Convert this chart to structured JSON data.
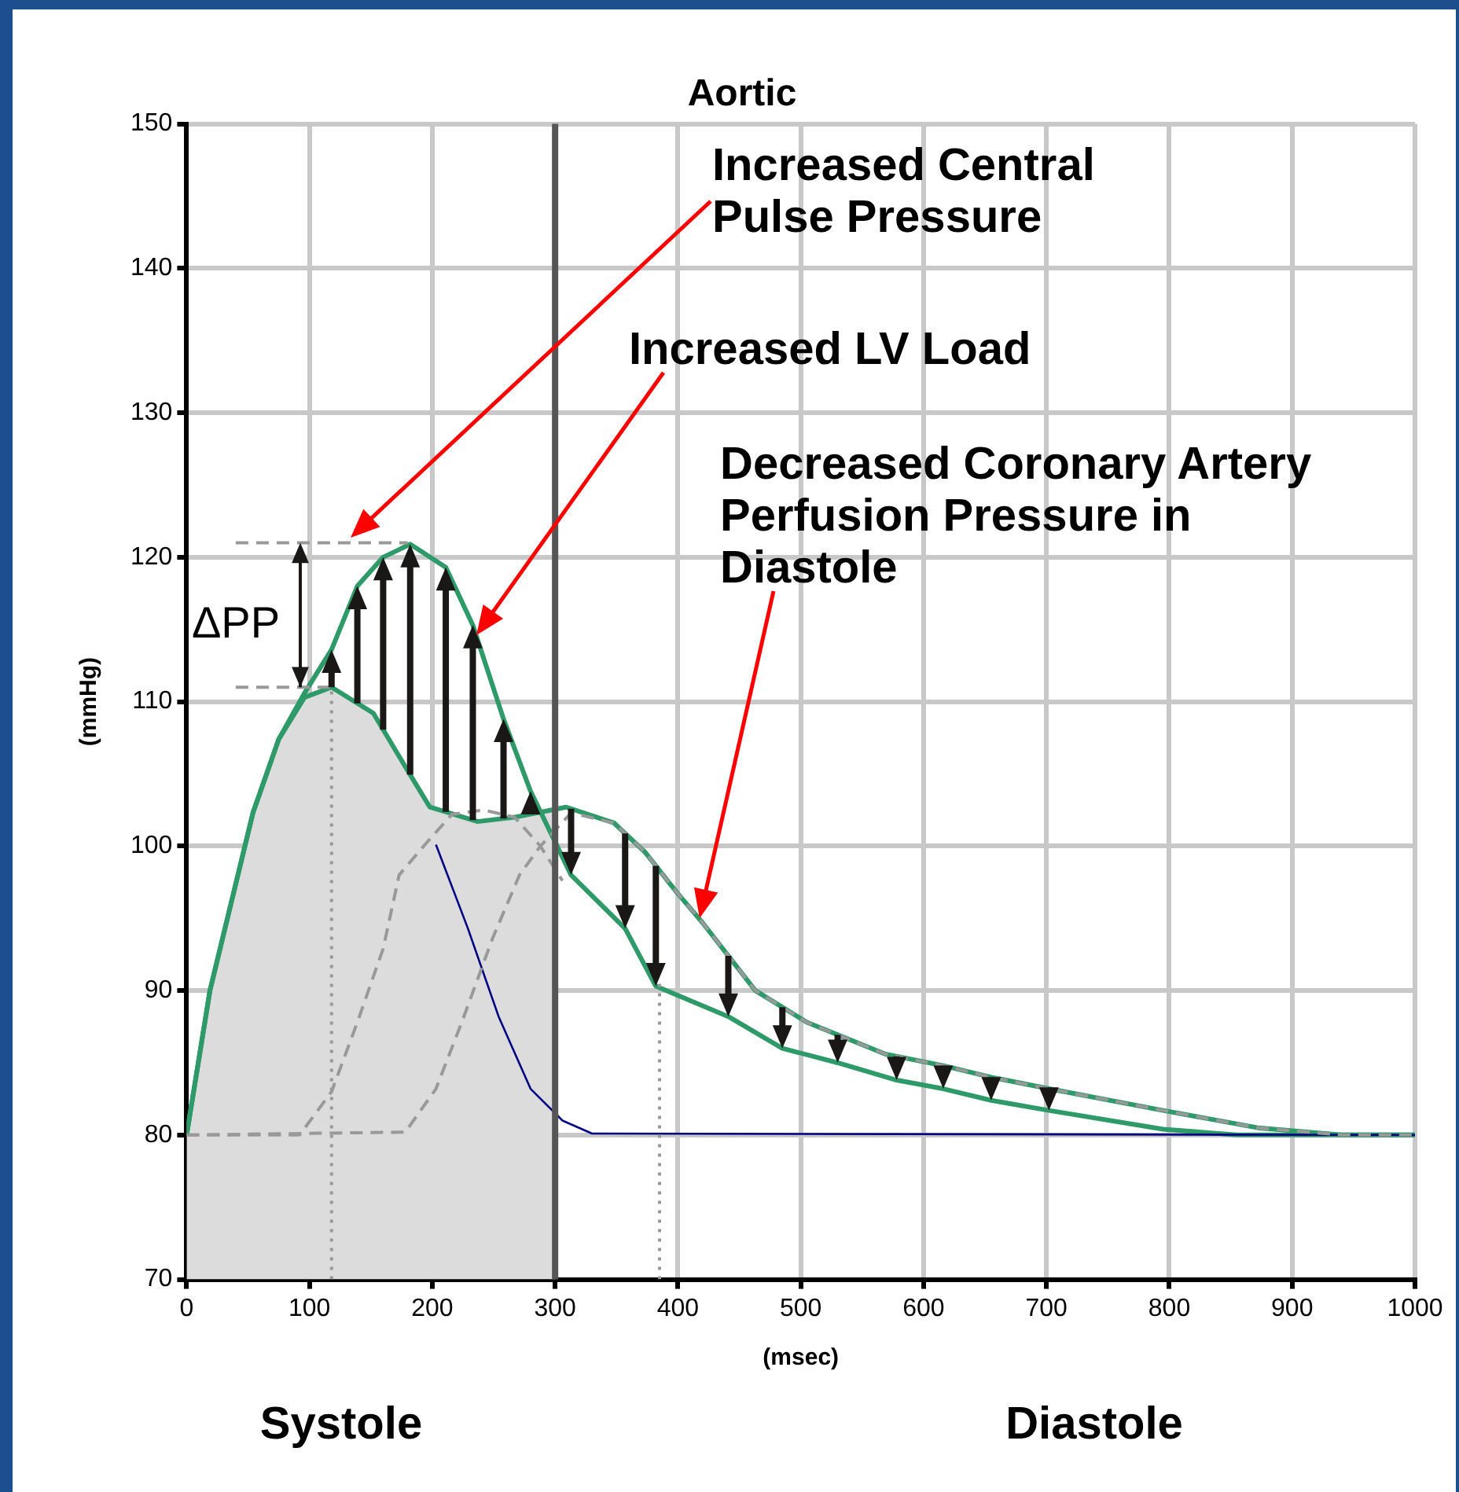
{
  "chart_data": {
    "type": "line",
    "title": "Aortic",
    "xlabel": "(msec)",
    "ylabel": "(mmHg)",
    "xlim": [
      0,
      1000
    ],
    "xticks": [
      0,
      100,
      200,
      300,
      400,
      500,
      600,
      700,
      800,
      900,
      1000
    ],
    "ylim": [
      70,
      150
    ],
    "yticks": [
      70,
      80,
      90,
      100,
      110,
      120,
      130,
      140,
      150
    ],
    "grid": true,
    "legend": false,
    "marker": "none",
    "series": [
      {
        "type": "area",
        "color": "#dcdcdc",
        "x": [
          0,
          19,
          54,
          75,
          96,
          118,
          152,
          178,
          198,
          237,
          267,
          300
        ],
        "values": [
          80,
          90,
          102.3,
          107.4,
          110.3,
          111,
          109.2,
          105.5,
          102.7,
          101.7,
          102,
          102.5
        ]
      },
      {
        "color": "#2e9a6a",
        "x": [
          0,
          19,
          54,
          75,
          96,
          118,
          152,
          178,
          198,
          237,
          267,
          309,
          348,
          373,
          399,
          420,
          463,
          505,
          569,
          616,
          655,
          702,
          795,
          872,
          940,
          1000
        ],
        "values": [
          80,
          90,
          102.3,
          107.4,
          110.3,
          111,
          109.2,
          105.5,
          102.7,
          101.7,
          102,
          102.7,
          101.6,
          99.6,
          96.8,
          94.7,
          90,
          87.8,
          85.6,
          84.8,
          84,
          83.2,
          81.7,
          80.5,
          80,
          80
        ]
      },
      {
        "color": "#2e9a6a",
        "x": [
          0,
          19,
          54,
          75,
          96,
          118,
          139,
          160,
          182,
          211,
          233,
          258,
          280,
          313,
          357,
          382,
          441,
          485,
          530,
          578,
          616,
          655,
          702,
          795,
          855,
          1000
        ],
        "values": [
          80,
          90,
          102.3,
          107.4,
          110.6,
          113.6,
          118,
          120,
          120.9,
          119.3,
          115.3,
          108.8,
          103.8,
          98,
          94.3,
          90.3,
          88.2,
          86,
          85,
          83.8,
          83.2,
          82.4,
          81.7,
          80.4,
          80,
          80
        ]
      },
      {
        "color": "#000080",
        "x": [
          203,
          229,
          254,
          280,
          306,
          330,
          1000
        ],
        "values": [
          100.1,
          94.3,
          88.2,
          83.2,
          81,
          80.1,
          80
        ]
      },
      {
        "color": "#999999",
        "line_style": "dashed",
        "x": [
          0,
          92,
          118,
          139,
          160,
          173,
          194,
          216,
          242,
          267,
          288,
          306
        ],
        "values": [
          80,
          80,
          83,
          87.8,
          92.9,
          98,
          100.1,
          102.2,
          102.5,
          102,
          100,
          97.6
        ]
      },
      {
        "color": "#999999",
        "line_style": "dashed",
        "x": [
          0,
          178,
          203,
          224,
          249,
          271,
          288,
          313,
          348,
          373,
          399,
          420,
          463,
          505,
          569,
          616,
          655,
          702,
          795,
          872,
          940,
          1000
        ],
        "values": [
          80,
          80.2,
          83.2,
          87.8,
          93.6,
          98,
          100,
          102.3,
          101.6,
          99.6,
          96.8,
          94.7,
          90,
          87.8,
          85.6,
          84.8,
          84,
          83.2,
          81.7,
          80.5,
          80,
          80
        ]
      },
      {
        "color": "#999999",
        "line_style": "dotted",
        "x": [
          118,
          118
        ],
        "values": [
          70,
          111
        ]
      },
      {
        "color": "#999999",
        "line_style": "dotted",
        "x": [
          385,
          385
        ],
        "values": [
          70,
          90.6
        ]
      },
      {
        "color": "#999999",
        "line_style": "dashed",
        "x": [
          40,
          180
        ],
        "values": [
          121,
          121
        ]
      },
      {
        "color": "#999999",
        "line_style": "dashed",
        "x": [
          40,
          118
        ],
        "values": [
          111,
          111
        ]
      }
    ],
    "ref_lines": [
      {
        "axis": "x",
        "value": 300,
        "color": "#555555"
      }
    ],
    "annotations": [
      "Increased Central\nPulse Pressure",
      "Increased LV Load",
      "Decreased Coronary Artery\nPerfusion Pressure in\nDiastole",
      "ΔPP",
      "Systole",
      "Diastole"
    ]
  }
}
